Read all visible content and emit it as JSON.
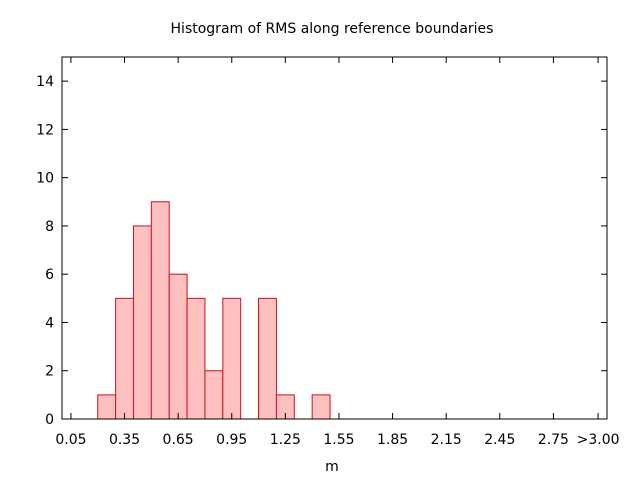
{
  "chart_data": {
    "type": "bar",
    "title": "Histogram of RMS along reference boundaries",
    "xlabel": "m",
    "ylabel": "",
    "bin_width": 0.1,
    "xlim": [
      0.0,
      3.05
    ],
    "ylim": [
      0,
      15
    ],
    "x_tick_values": [
      0.05,
      0.35,
      0.65,
      0.95,
      1.25,
      1.55,
      1.85,
      2.15,
      2.45,
      2.75,
      3.0
    ],
    "x_tick_labels": [
      "0.05",
      "0.35",
      "0.65",
      "0.95",
      "1.25",
      "1.55",
      "1.85",
      "2.15",
      "2.45",
      "2.75",
      ">3.00"
    ],
    "y_ticks": [
      0,
      2,
      4,
      6,
      8,
      10,
      12,
      14
    ],
    "bins": [
      {
        "center": 0.25,
        "count": 1
      },
      {
        "center": 0.35,
        "count": 5
      },
      {
        "center": 0.45,
        "count": 8
      },
      {
        "center": 0.55,
        "count": 9
      },
      {
        "center": 0.65,
        "count": 6
      },
      {
        "center": 0.75,
        "count": 5
      },
      {
        "center": 0.85,
        "count": 2
      },
      {
        "center": 0.95,
        "count": 5
      },
      {
        "center": 1.15,
        "count": 5
      },
      {
        "center": 1.25,
        "count": 1
      },
      {
        "center": 1.45,
        "count": 1
      }
    ],
    "grid": false,
    "legend": "none",
    "bar_fill": "#ffc0c0",
    "bar_stroke": "#d0101a"
  }
}
